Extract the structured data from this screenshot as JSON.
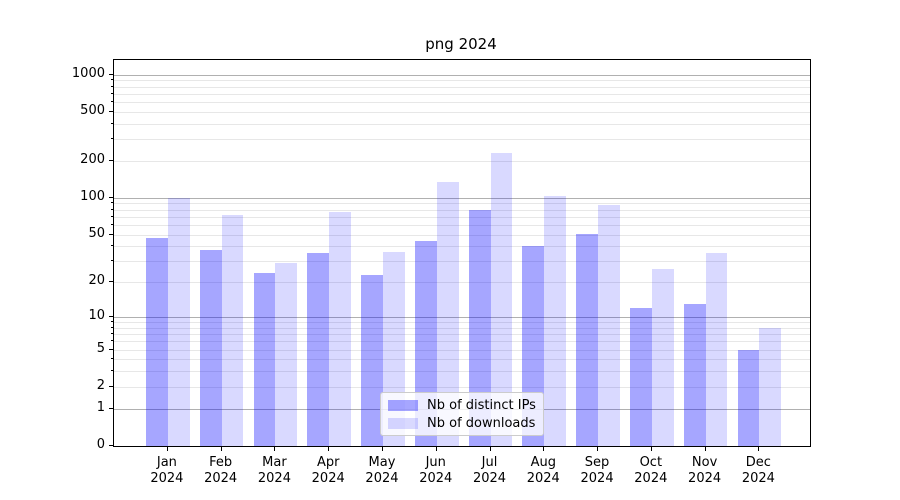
{
  "chart_data": {
    "type": "bar",
    "title": "png 2024",
    "x": {
      "months": [
        "Jan",
        "Feb",
        "Mar",
        "Apr",
        "May",
        "Jun",
        "Jul",
        "Aug",
        "Sep",
        "Oct",
        "Nov",
        "Dec"
      ],
      "year": "2024"
    },
    "y_axis": {
      "scale": "log10(value+1)",
      "tick_labels": [
        0,
        1,
        2,
        5,
        10,
        20,
        50,
        100,
        200,
        500,
        1000
      ],
      "major_gridlines": [
        1,
        10,
        100,
        1000
      ],
      "minor_gridlines": [
        2,
        3,
        4,
        5,
        6,
        7,
        8,
        9,
        20,
        30,
        40,
        50,
        60,
        70,
        80,
        90,
        200,
        300,
        400,
        500,
        600,
        700,
        800,
        900
      ],
      "ylim": [
        0,
        1300
      ],
      "grid": true
    },
    "series": [
      {
        "name": "Nb of distinct IPs",
        "color": "#0000FF59",
        "values": [
          47,
          37,
          24,
          35,
          23,
          44,
          79,
          40,
          51,
          12,
          13,
          5
        ]
      },
      {
        "name": "Nb of downloads",
        "color": "#0000FF26",
        "values": [
          100,
          72,
          29,
          77,
          36,
          135,
          230,
          104,
          87,
          26,
          35,
          8
        ]
      }
    ],
    "legend": {
      "position": "lower center",
      "items": [
        "Nb of distinct IPs",
        "Nb of downloads"
      ]
    },
    "colors": {
      "major_grid": "#b0b0b0",
      "minor_grid": "#e7e7e7",
      "spine": "#000000"
    }
  }
}
